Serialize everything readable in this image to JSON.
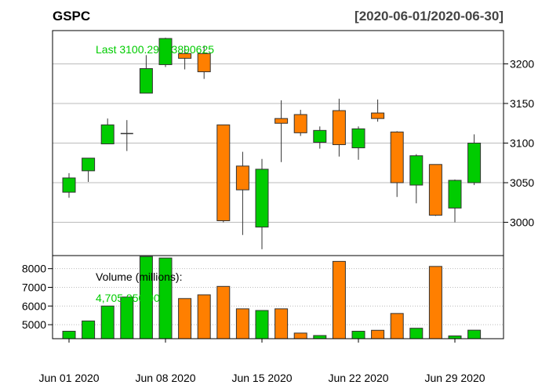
{
  "chart_data": {
    "type": "candlestick",
    "title": "GSPC",
    "date_range": "[2020-06-01/2020-06-30]",
    "last_label": "Last 3100.29003890625",
    "volume_label": "Volume (millions):",
    "volume_value": "4,705,850,000",
    "colors": {
      "up": "#00cc00",
      "down": "#ff7f00",
      "text": "#00cc00",
      "grid": "#bbbbbb"
    },
    "price_axis": {
      "ticks": [
        3000,
        3050,
        3100,
        3150,
        3200
      ],
      "ylim": [
        2958,
        3242
      ]
    },
    "volume_axis": {
      "ticks": [
        5000,
        6000,
        7000,
        8000
      ],
      "ylim": [
        4250,
        8700
      ]
    },
    "x_tick_labels": [
      {
        "index": 0,
        "label": "Jun 01 2020"
      },
      {
        "index": 5,
        "label": "Jun 08 2020"
      },
      {
        "index": 10,
        "label": "Jun 15 2020"
      },
      {
        "index": 15,
        "label": "Jun 22 2020"
      },
      {
        "index": 20,
        "label": "Jun 29 2020"
      }
    ],
    "candles": [
      {
        "date": "2020-06-01",
        "open": 3038,
        "high": 3062,
        "low": 3031,
        "close": 3056,
        "volume": 4650
      },
      {
        "date": "2020-06-02",
        "open": 3065,
        "high": 3081,
        "low": 3051,
        "close": 3081,
        "volume": 5200
      },
      {
        "date": "2020-06-03",
        "open": 3099,
        "high": 3131,
        "low": 3099,
        "close": 3123,
        "volume": 6000
      },
      {
        "date": "2020-06-04",
        "open": 3111,
        "high": 3129,
        "low": 3090,
        "close": 3112,
        "volume": 6480
      },
      {
        "date": "2020-06-05",
        "open": 3163,
        "high": 3211,
        "low": 3163,
        "close": 3194,
        "volume": 8650
      },
      {
        "date": "2020-06-08",
        "open": 3199,
        "high": 3233,
        "low": 3196,
        "close": 3232,
        "volume": 8570
      },
      {
        "date": "2020-06-09",
        "open": 3213,
        "high": 3223,
        "low": 3193,
        "close": 3207,
        "volume": 6400
      },
      {
        "date": "2020-06-10",
        "open": 3213,
        "high": 3223,
        "low": 3181,
        "close": 3190,
        "volume": 6600
      },
      {
        "date": "2020-06-11",
        "open": 3123,
        "high": 3123,
        "low": 3000,
        "close": 3002,
        "volume": 7050
      },
      {
        "date": "2020-06-12",
        "open": 3071,
        "high": 3089,
        "low": 2984,
        "close": 3041,
        "volume": 5850
      },
      {
        "date": "2020-06-15",
        "open": 2994,
        "high": 3080,
        "low": 2966,
        "close": 3067,
        "volume": 5760
      },
      {
        "date": "2020-06-16",
        "open": 3131,
        "high": 3154,
        "low": 3076,
        "close": 3125,
        "volume": 5850
      },
      {
        "date": "2020-06-17",
        "open": 3136,
        "high": 3142,
        "low": 3109,
        "close": 3113,
        "volume": 4550
      },
      {
        "date": "2020-06-18",
        "open": 3101,
        "high": 3121,
        "low": 3093,
        "close": 3116,
        "volume": 4420
      },
      {
        "date": "2020-06-19",
        "open": 3141,
        "high": 3156,
        "low": 3083,
        "close": 3098,
        "volume": 8390
      },
      {
        "date": "2020-06-22",
        "open": 3094,
        "high": 3121,
        "low": 3079,
        "close": 3118,
        "volume": 4650
      },
      {
        "date": "2020-06-23",
        "open": 3138,
        "high": 3155,
        "low": 3127,
        "close": 3131,
        "volume": 4700
      },
      {
        "date": "2020-06-24",
        "open": 3114,
        "high": 3115,
        "low": 3032,
        "close": 3050,
        "volume": 5600
      },
      {
        "date": "2020-06-25",
        "open": 3047,
        "high": 3086,
        "low": 3024,
        "close": 3084,
        "volume": 4810
      },
      {
        "date": "2020-06-26",
        "open": 3073,
        "high": 3073,
        "low": 3008,
        "close": 3009,
        "volume": 8120
      },
      {
        "date": "2020-06-29",
        "open": 3018,
        "high": 3054,
        "low": 3000,
        "close": 3053,
        "volume": 4400
      },
      {
        "date": "2020-06-30",
        "open": 3050,
        "high": 3111,
        "low": 3047,
        "close": 3100,
        "volume": 4706
      }
    ]
  }
}
